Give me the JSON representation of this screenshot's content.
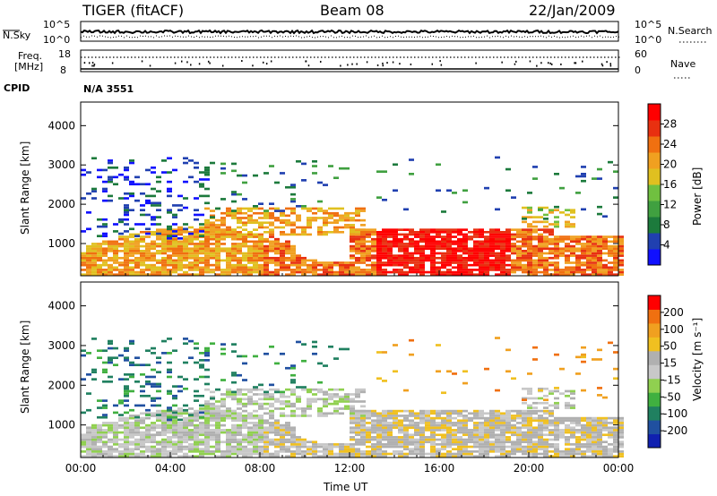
{
  "header": {
    "station": "TIGER (fitACF)",
    "beam": "Beam 08",
    "date": "22/Jan/2009"
  },
  "status_panels": {
    "nsky_label": "N.Sky",
    "nsearch_label": "N.Search",
    "noise_ticks": [
      "10^5",
      "10^0"
    ],
    "freq_label_line1": "Freq.",
    "freq_label_line2": "[MHz]",
    "freq_ticks": [
      "18",
      "8"
    ],
    "nave_ticks": [
      "60",
      "0"
    ],
    "nave_label": "Nave",
    "cpid_label": "CPID",
    "cpid_value": "N/A 3551"
  },
  "colors": {
    "power_scale": [
      "#1010ff",
      "#2040b0",
      "#1c7a3c",
      "#40a040",
      "#70c040",
      "#e0c020",
      "#f0a020",
      "#f07010",
      "#e83010",
      "#ff0000"
    ],
    "velocity_scale": [
      "#1020b0",
      "#2050a0",
      "#208060",
      "#40b040",
      "#90d050",
      "#c8c8c8",
      "#b0b0b0",
      "#f0c020",
      "#f0a020",
      "#f07010",
      "#ff0000"
    ],
    "grey_scatter": "#c0c0c0"
  },
  "chart_data": [
    {
      "type": "heatmap",
      "name": "power",
      "xlabel": "Time UT",
      "ylabel": "Slant Range [km]",
      "x_ticks": [
        "00:00",
        "04:00",
        "08:00",
        "12:00",
        "16:00",
        "20:00",
        "00:00"
      ],
      "y_ticks": [
        "1000",
        "2000",
        "3000",
        "4000"
      ],
      "xlim_hours": [
        0,
        24
      ],
      "ylim_km": [
        180,
        4600
      ],
      "colorbar_label": "Power [dB]",
      "colorbar_ticks": [
        "28",
        "24",
        "20",
        "16",
        "12",
        "8",
        "4"
      ],
      "colorbar_range_db": [
        0,
        32
      ]
    },
    {
      "type": "heatmap",
      "name": "velocity",
      "xlabel": "Time UT",
      "ylabel": "Slant Range [km]",
      "x_ticks": [
        "00:00",
        "04:00",
        "08:00",
        "12:00",
        "16:00",
        "20:00",
        "00:00"
      ],
      "y_ticks": [
        "1000",
        "2000",
        "3000",
        "4000"
      ],
      "xlim_hours": [
        0,
        24
      ],
      "ylim_km": [
        180,
        4600
      ],
      "colorbar_label": "Velocity [m s⁻¹]",
      "colorbar_ticks": [
        "200",
        "100",
        "50",
        "15",
        "-15",
        "-50",
        "-100",
        "-200"
      ]
    }
  ]
}
